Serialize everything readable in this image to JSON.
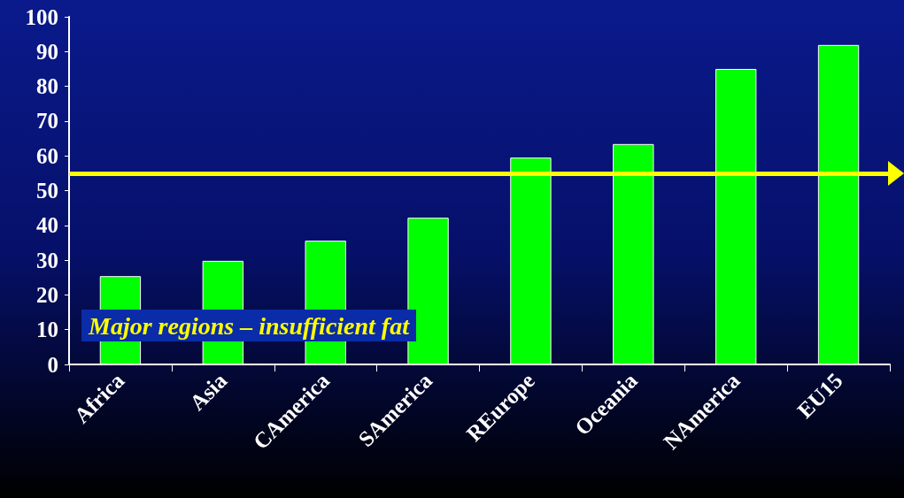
{
  "chart_data": {
    "type": "bar",
    "categories": [
      "Africa",
      "Asia",
      "CAmerica",
      "SAmerica",
      "REurope",
      "Oceania",
      "NAmerica",
      "EU15"
    ],
    "values": [
      25.4,
      29.8,
      35.6,
      42.2,
      59.5,
      63.4,
      85,
      91.9
    ],
    "color": "#00ff00",
    "ylim": [
      0,
      100
    ],
    "yticks": [
      0,
      10,
      20,
      30,
      40,
      50,
      60,
      70,
      80,
      90,
      100
    ],
    "grid": false,
    "ref_lines": [
      {
        "axis": "y",
        "value": 55,
        "color": "#ffff00"
      }
    ],
    "annotations": [
      "Major regions – insufficient fat"
    ]
  }
}
